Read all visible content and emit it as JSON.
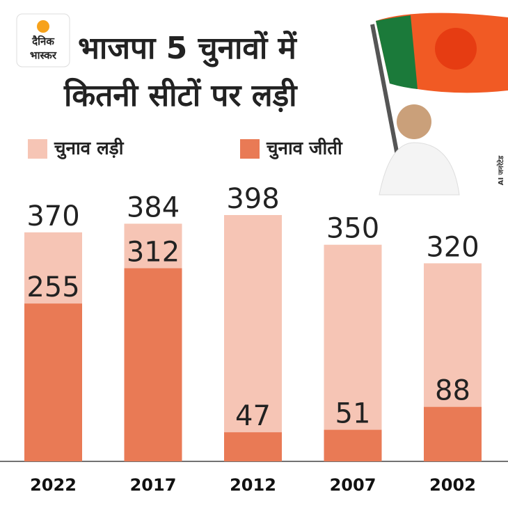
{
  "logo": {
    "line1": "दैनिक",
    "line2": "भास्कर"
  },
  "note": "AI जनरेटेड",
  "chart_data": {
    "type": "bar",
    "barmode": "overlay",
    "title": [
      "भाजपा 5 चुनावों में",
      "कितनी सीटों पर लड़ी"
    ],
    "categories": [
      "2022",
      "2017",
      "2012",
      "2007",
      "2002"
    ],
    "series": [
      {
        "name": "चुनाव लड़ी",
        "color": "#f6c5b5",
        "values": [
          370,
          384,
          398,
          350,
          320
        ]
      },
      {
        "name": "चुनाव जीती",
        "color": "#e97a55",
        "values": [
          255,
          312,
          47,
          51,
          88
        ]
      }
    ]
  }
}
